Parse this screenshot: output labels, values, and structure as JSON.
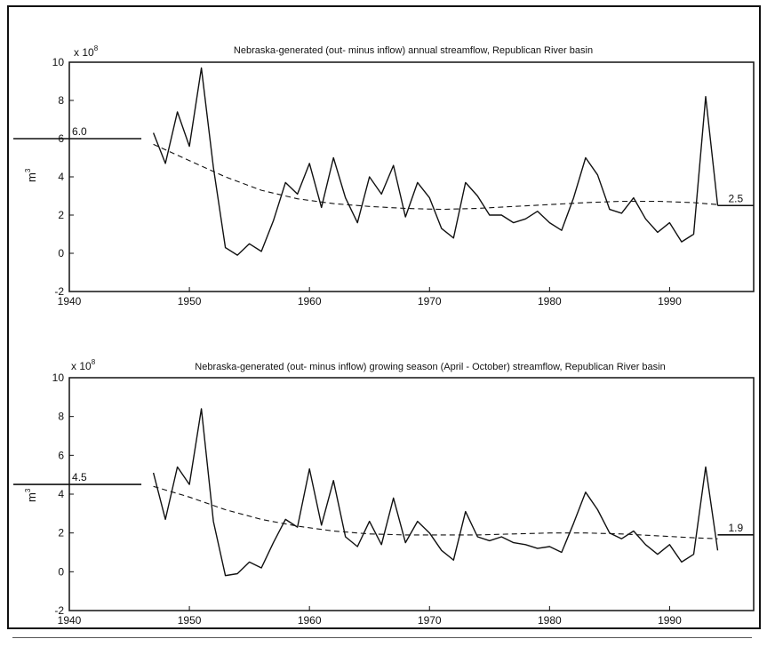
{
  "chart_data": [
    {
      "type": "line",
      "title": "Nebraska-generated (out- minus inflow) annual streamflow, Republican River basin",
      "scale_label": "x 10",
      "scale_exp": "8",
      "ylabel": "m",
      "ylabel_exp": "3",
      "xlim": [
        1940,
        1997
      ],
      "ylim": [
        -2,
        10
      ],
      "x_ticks": [
        1940,
        1950,
        1960,
        1970,
        1980,
        1990
      ],
      "y_ticks": [
        -2,
        0,
        2,
        4,
        6,
        8,
        10
      ],
      "series": [
        {
          "style": "solid",
          "x": [
            1947,
            1948,
            1949,
            1950,
            1951,
            1952,
            1953,
            1954,
            1955,
            1956,
            1957,
            1958,
            1959,
            1960,
            1961,
            1962,
            1963,
            1964,
            1965,
            1966,
            1967,
            1968,
            1969,
            1970,
            1971,
            1972,
            1973,
            1974,
            1975,
            1976,
            1977,
            1978,
            1979,
            1980,
            1981,
            1982,
            1983,
            1984,
            1985,
            1986,
            1987,
            1988,
            1989,
            1990,
            1991,
            1992,
            1993,
            1994
          ],
          "y": [
            6.3,
            4.7,
            7.4,
            5.6,
            9.7,
            4.5,
            0.3,
            -0.1,
            0.5,
            0.1,
            1.7,
            3.7,
            3.1,
            4.7,
            2.4,
            5.0,
            2.9,
            1.6,
            4.0,
            3.1,
            4.6,
            1.9,
            3.7,
            2.9,
            1.3,
            0.8,
            3.7,
            3.0,
            2.0,
            2.0,
            1.6,
            1.8,
            2.2,
            1.6,
            1.2,
            2.9,
            5.0,
            4.1,
            2.3,
            2.1,
            2.9,
            1.8,
            1.1,
            1.6,
            0.6,
            1.0,
            8.2,
            2.5
          ]
        },
        {
          "style": "dashed",
          "x": [
            1947,
            1950,
            1953,
            1956,
            1959,
            1962,
            1965,
            1968,
            1971,
            1974,
            1977,
            1980,
            1983,
            1986,
            1989,
            1992,
            1994
          ],
          "y": [
            5.7,
            4.85,
            4.0,
            3.3,
            2.85,
            2.6,
            2.45,
            2.35,
            2.3,
            2.35,
            2.45,
            2.55,
            2.65,
            2.72,
            2.72,
            2.65,
            2.55
          ]
        }
      ],
      "reference_lines": [
        {
          "label": "6.0",
          "y": 6.0,
          "x_start": 1940,
          "x_end": 1946
        },
        {
          "label": "2.5",
          "y": 2.5,
          "x_start": 1994,
          "x_end": 1997
        }
      ]
    },
    {
      "type": "line",
      "title": "Nebraska-generated (out- minus inflow) growing season (April - October) streamflow, Republican River basin",
      "scale_label": "x 10",
      "scale_exp": "8",
      "ylabel": "m",
      "ylabel_exp": "3",
      "xlim": [
        1940,
        1997
      ],
      "ylim": [
        -2,
        10
      ],
      "x_ticks": [
        1940,
        1950,
        1960,
        1970,
        1980,
        1990
      ],
      "y_ticks": [
        -2,
        0,
        2,
        4,
        6,
        8,
        10
      ],
      "series": [
        {
          "style": "solid",
          "x": [
            1947,
            1948,
            1949,
            1950,
            1951,
            1952,
            1953,
            1954,
            1955,
            1956,
            1957,
            1958,
            1959,
            1960,
            1961,
            1962,
            1963,
            1964,
            1965,
            1966,
            1967,
            1968,
            1969,
            1970,
            1971,
            1972,
            1973,
            1974,
            1975,
            1976,
            1977,
            1978,
            1979,
            1980,
            1981,
            1982,
            1983,
            1984,
            1985,
            1986,
            1987,
            1988,
            1989,
            1990,
            1991,
            1992,
            1993,
            1994
          ],
          "y": [
            5.1,
            2.7,
            5.4,
            4.5,
            8.4,
            2.6,
            -0.2,
            -0.1,
            0.5,
            0.2,
            1.5,
            2.7,
            2.3,
            5.3,
            2.4,
            4.7,
            1.8,
            1.3,
            2.6,
            1.4,
            3.8,
            1.5,
            2.6,
            2.0,
            1.1,
            0.6,
            3.1,
            1.8,
            1.6,
            1.8,
            1.5,
            1.4,
            1.2,
            1.3,
            1.0,
            2.5,
            4.1,
            3.2,
            2.0,
            1.7,
            2.1,
            1.4,
            0.9,
            1.4,
            0.5,
            0.9,
            5.4,
            1.1
          ]
        },
        {
          "style": "dashed",
          "x": [
            1947,
            1950,
            1953,
            1956,
            1959,
            1962,
            1965,
            1968,
            1971,
            1974,
            1977,
            1980,
            1983,
            1986,
            1989,
            1992,
            1994
          ],
          "y": [
            4.4,
            3.85,
            3.2,
            2.7,
            2.35,
            2.1,
            1.95,
            1.9,
            1.9,
            1.9,
            1.95,
            2.0,
            2.0,
            1.95,
            1.85,
            1.75,
            1.7
          ]
        }
      ],
      "reference_lines": [
        {
          "label": "4.5",
          "y": 4.5,
          "x_start": 1940,
          "x_end": 1946
        },
        {
          "label": "1.9",
          "y": 1.9,
          "x_start": 1994,
          "x_end": 1997
        }
      ]
    }
  ]
}
